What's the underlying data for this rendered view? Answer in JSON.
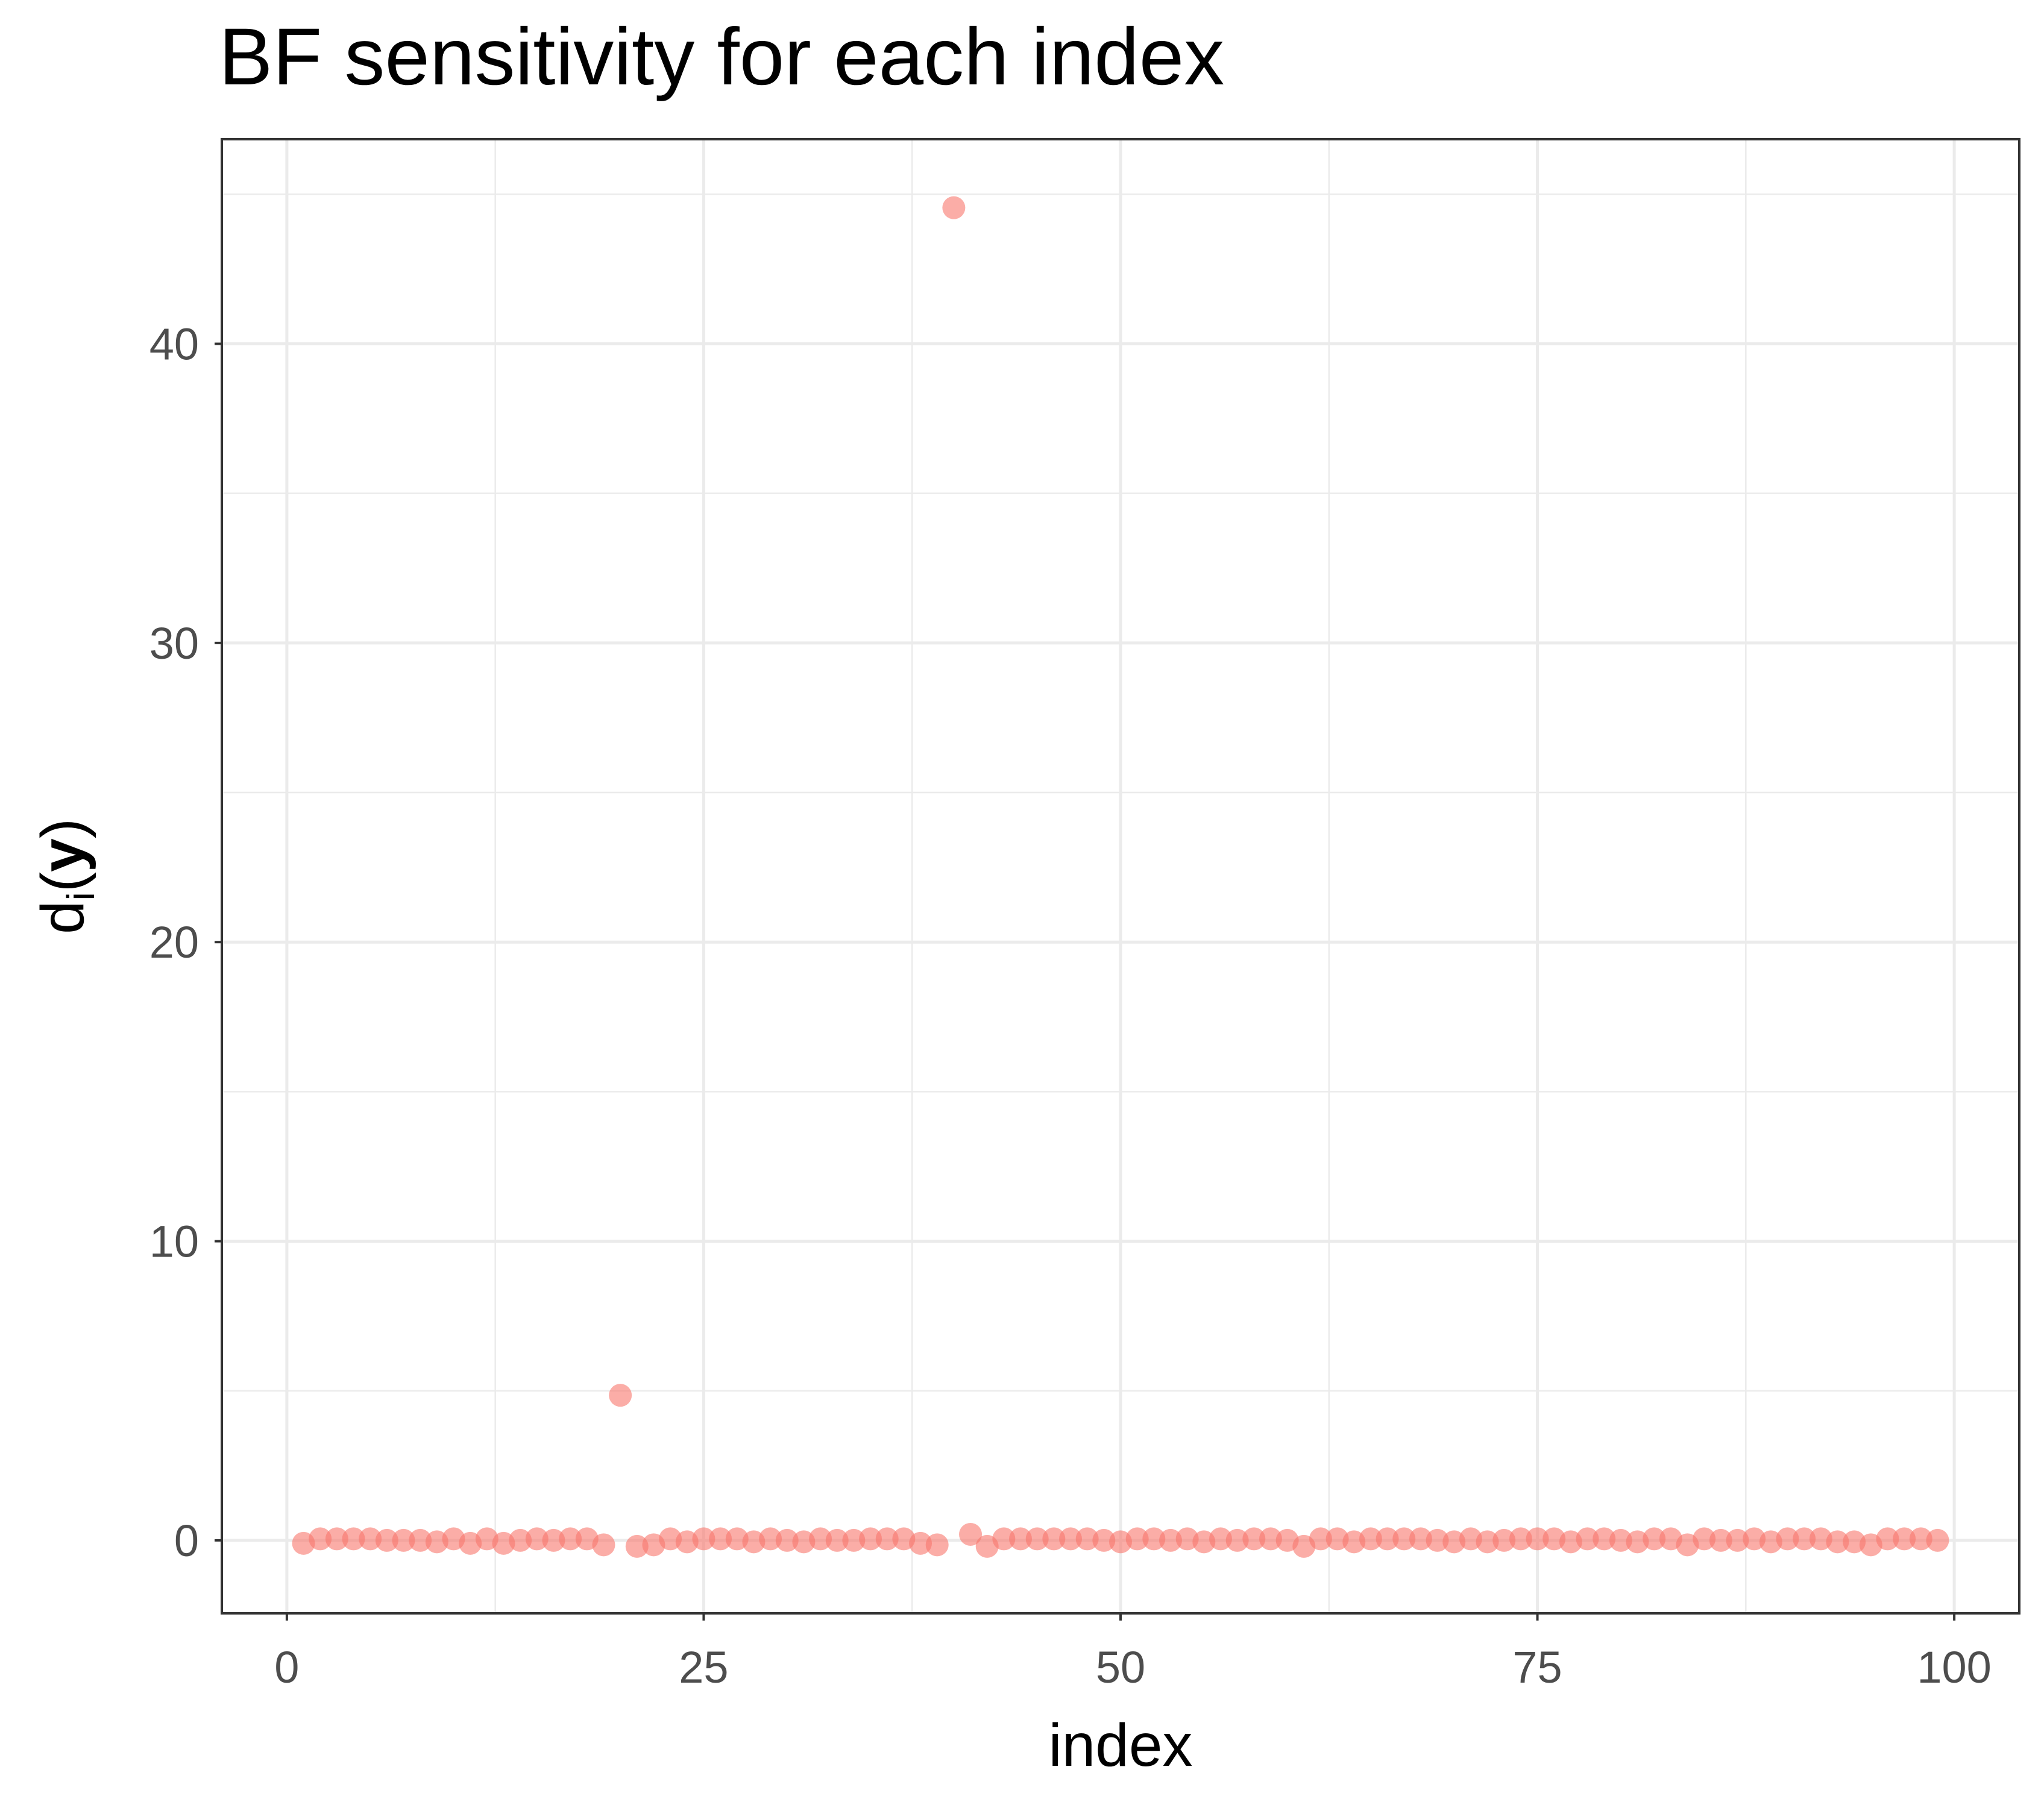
{
  "chart_data": {
    "type": "scatter",
    "title": "BF sensitivity for each index",
    "xlabel": "index",
    "ylabel": {
      "text": "d",
      "subscript": "i",
      "open": "(",
      "argument": "y",
      "close": ")"
    },
    "color": "#F8766D",
    "grid": true,
    "xlim": [
      -3.9,
      103.9
    ],
    "ylim": [
      -2.44,
      46.84
    ],
    "xticks": [
      0,
      25,
      50,
      75,
      100
    ],
    "yticks": [
      0,
      10,
      20,
      30,
      40
    ],
    "minor_xticks": [
      12.5,
      37.5,
      62.5,
      87.5
    ],
    "minor_yticks": [
      5,
      15,
      25,
      35,
      45
    ],
    "x": [
      1,
      2,
      3,
      4,
      5,
      6,
      7,
      8,
      9,
      10,
      11,
      12,
      13,
      14,
      15,
      16,
      17,
      18,
      19,
      20,
      21,
      22,
      23,
      24,
      25,
      26,
      27,
      28,
      29,
      30,
      31,
      32,
      33,
      34,
      35,
      36,
      37,
      38,
      39,
      40,
      41,
      42,
      43,
      44,
      45,
      46,
      47,
      48,
      49,
      50,
      51,
      52,
      53,
      54,
      55,
      56,
      57,
      58,
      59,
      60,
      61,
      62,
      63,
      64,
      65,
      66,
      67,
      68,
      69,
      70,
      71,
      72,
      73,
      74,
      75,
      76,
      77,
      78,
      79,
      80,
      81,
      82,
      83,
      84,
      85,
      86,
      87,
      88,
      89,
      90,
      91,
      92,
      93,
      94,
      95,
      96,
      97,
      98,
      99
    ],
    "values": [
      -0.1,
      0.05,
      0.05,
      0.05,
      0.05,
      0,
      0,
      0,
      -0.05,
      0.05,
      -0.1,
      0.05,
      -0.1,
      0,
      0.05,
      0,
      0.05,
      0.05,
      -0.15,
      4.85,
      -0.2,
      -0.15,
      0.05,
      -0.05,
      0.05,
      0.05,
      0.05,
      -0.05,
      0.05,
      0,
      -0.05,
      0.05,
      0,
      0,
      0.05,
      0.05,
      0.05,
      -0.1,
      -0.15,
      44.55,
      0.2,
      -0.2,
      0.05,
      0.05,
      0.05,
      0.05,
      0.05,
      0.05,
      0,
      -0.05,
      0.05,
      0.05,
      0,
      0.05,
      -0.05,
      0.05,
      0,
      0.05,
      0.05,
      0,
      -0.2,
      0.05,
      0.05,
      -0.05,
      0.05,
      0.05,
      0.05,
      0.05,
      0,
      -0.05,
      0.05,
      -0.05,
      0,
      0.05,
      0.05,
      0.05,
      -0.05,
      0.05,
      0.05,
      0,
      -0.05,
      0.05,
      0.05,
      -0.15,
      0.05,
      0,
      0,
      0.05,
      -0.05,
      0.05,
      0.05,
      0.05,
      -0.05,
      -0.05,
      -0.15,
      0.05,
      0.05,
      0.05,
      0
    ]
  }
}
